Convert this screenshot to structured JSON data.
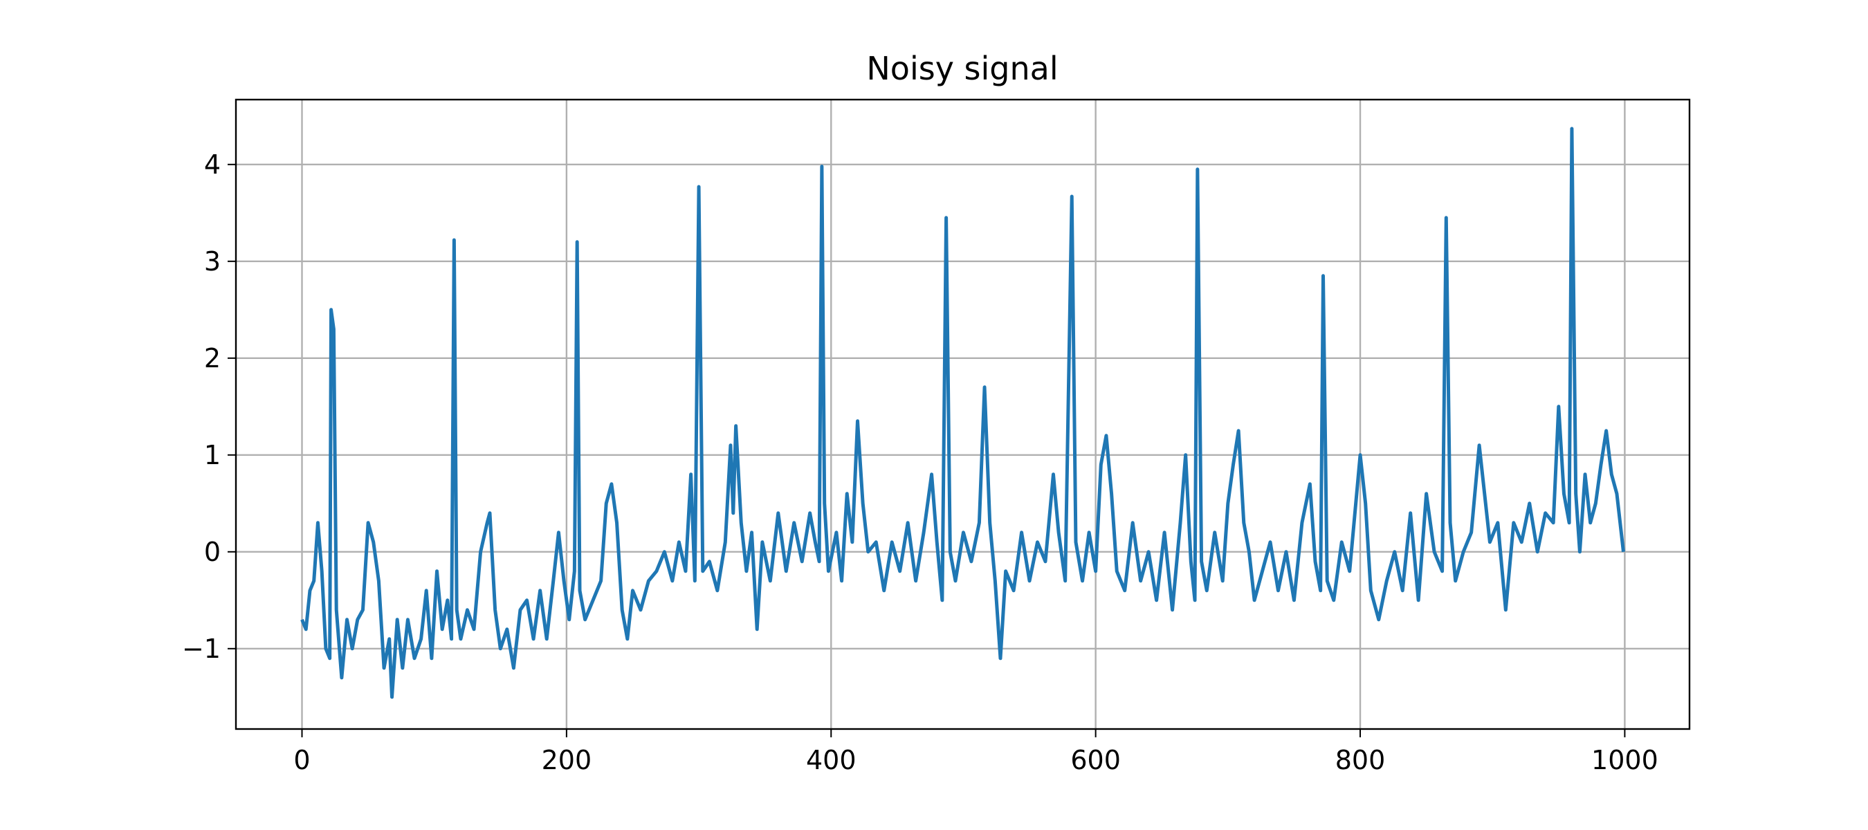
{
  "chart_data": {
    "type": "line",
    "title": "Noisy signal",
    "color": "#1f77b4",
    "grid": true,
    "xlim": [
      -49.95,
      1048.95
    ],
    "ylim": [
      -1.83,
      4.67
    ],
    "xticks": [
      0,
      200,
      400,
      600,
      800,
      1000
    ],
    "yticks": [
      {
        "value": -1,
        "label": "−1"
      },
      0,
      1,
      2,
      3,
      4
    ],
    "x": [
      0,
      3,
      6,
      9,
      12,
      15,
      18,
      21,
      22,
      24,
      26,
      30,
      34,
      38,
      42,
      46,
      50,
      54,
      58,
      62,
      66,
      68,
      72,
      76,
      80,
      85,
      90,
      94,
      98,
      102,
      106,
      110,
      113,
      115,
      117,
      120,
      125,
      130,
      135,
      140,
      142,
      146,
      150,
      155,
      160,
      165,
      170,
      175,
      180,
      185,
      190,
      194,
      198,
      202,
      206,
      208,
      210,
      214,
      220,
      226,
      230,
      234,
      238,
      242,
      246,
      250,
      256,
      262,
      268,
      274,
      280,
      285,
      290,
      294,
      297,
      300,
      303,
      308,
      314,
      320,
      324,
      326,
      328,
      332,
      336,
      340,
      344,
      348,
      354,
      360,
      366,
      372,
      378,
      384,
      388,
      391,
      393,
      395,
      398,
      404,
      408,
      412,
      416,
      420,
      424,
      428,
      434,
      440,
      446,
      452,
      458,
      464,
      470,
      476,
      480,
      484,
      487,
      490,
      494,
      500,
      506,
      512,
      516,
      520,
      524,
      528,
      532,
      538,
      544,
      550,
      556,
      562,
      568,
      572,
      577,
      582,
      585,
      590,
      595,
      600,
      604,
      608,
      612,
      616,
      622,
      628,
      634,
      640,
      646,
      652,
      658,
      664,
      668,
      672,
      675,
      677,
      680,
      684,
      690,
      696,
      700,
      704,
      708,
      712,
      716,
      720,
      726,
      732,
      738,
      744,
      750,
      756,
      762,
      766,
      770,
      772,
      775,
      780,
      786,
      792,
      798,
      800,
      804,
      808,
      814,
      820,
      826,
      832,
      838,
      844,
      850,
      856,
      862,
      865,
      868,
      872,
      878,
      884,
      890,
      894,
      898,
      904,
      910,
      916,
      922,
      928,
      934,
      940,
      946,
      950,
      954,
      958,
      960,
      963,
      966,
      970,
      974,
      978,
      982,
      986,
      990,
      994,
      999
    ],
    "values": [
      -0.7,
      -0.8,
      -0.4,
      -0.3,
      0.3,
      -0.2,
      -1.0,
      -1.1,
      2.5,
      2.3,
      -0.6,
      -1.3,
      -0.7,
      -1.0,
      -0.7,
      -0.6,
      0.3,
      0.1,
      -0.3,
      -1.2,
      -0.9,
      -1.5,
      -0.7,
      -1.2,
      -0.7,
      -1.1,
      -0.9,
      -0.4,
      -1.1,
      -0.2,
      -0.8,
      -0.5,
      -0.9,
      3.22,
      -0.6,
      -0.9,
      -0.6,
      -0.8,
      0.0,
      0.3,
      0.4,
      -0.6,
      -1.0,
      -0.8,
      -1.2,
      -0.6,
      -0.5,
      -0.9,
      -0.4,
      -0.9,
      -0.3,
      0.2,
      -0.3,
      -0.7,
      -0.2,
      3.2,
      -0.4,
      -0.7,
      -0.5,
      -0.3,
      0.5,
      0.7,
      0.3,
      -0.6,
      -0.9,
      -0.4,
      -0.6,
      -0.3,
      -0.2,
      0.0,
      -0.3,
      0.1,
      -0.2,
      0.8,
      -0.3,
      3.77,
      -0.2,
      -0.1,
      -0.4,
      0.1,
      1.1,
      0.4,
      1.3,
      0.3,
      -0.2,
      0.2,
      -0.8,
      0.1,
      -0.3,
      0.4,
      -0.2,
      0.3,
      -0.1,
      0.4,
      0.1,
      -0.1,
      3.98,
      0.5,
      -0.2,
      0.2,
      -0.3,
      0.6,
      0.1,
      1.35,
      0.5,
      0.0,
      0.1,
      -0.4,
      0.1,
      -0.2,
      0.3,
      -0.3,
      0.2,
      0.8,
      0.1,
      -0.5,
      3.45,
      0.0,
      -0.3,
      0.2,
      -0.1,
      0.3,
      1.7,
      0.3,
      -0.3,
      -1.1,
      -0.2,
      -0.4,
      0.2,
      -0.3,
      0.1,
      -0.1,
      0.8,
      0.2,
      -0.3,
      3.67,
      0.1,
      -0.3,
      0.2,
      -0.2,
      0.9,
      1.2,
      0.6,
      -0.2,
      -0.4,
      0.3,
      -0.3,
      0.0,
      -0.5,
      0.2,
      -0.6,
      0.3,
      1.0,
      -0.1,
      -0.5,
      3.95,
      -0.1,
      -0.4,
      0.2,
      -0.3,
      0.5,
      0.9,
      1.25,
      0.3,
      0.0,
      -0.5,
      -0.2,
      0.1,
      -0.4,
      0.0,
      -0.5,
      0.3,
      0.7,
      -0.1,
      -0.4,
      2.85,
      -0.3,
      -0.5,
      0.1,
      -0.2,
      0.7,
      1.0,
      0.5,
      -0.4,
      -0.7,
      -0.3,
      0.0,
      -0.4,
      0.4,
      -0.5,
      0.6,
      0.0,
      -0.2,
      3.45,
      0.3,
      -0.3,
      0.0,
      0.2,
      1.1,
      0.6,
      0.1,
      0.3,
      -0.6,
      0.3,
      0.1,
      0.5,
      0.0,
      0.4,
      0.3,
      1.5,
      0.6,
      0.3,
      4.37,
      0.6,
      0.0,
      0.8,
      0.3,
      0.5,
      0.9,
      1.25,
      0.8,
      0.6,
      0.0
    ]
  }
}
